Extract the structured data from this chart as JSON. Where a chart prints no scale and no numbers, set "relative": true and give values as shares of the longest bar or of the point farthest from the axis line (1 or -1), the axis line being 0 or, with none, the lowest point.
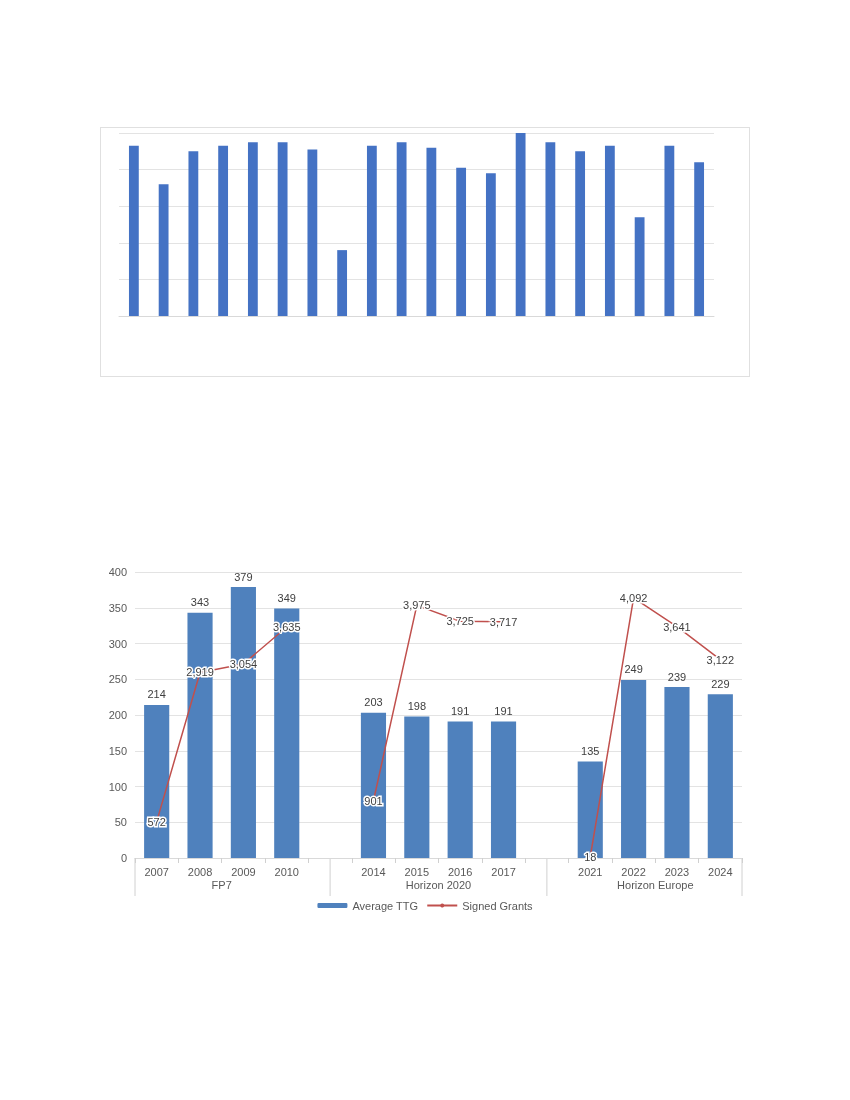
{
  "chart_data": [
    {
      "type": "bar",
      "relative": true,
      "grid": "y",
      "categories": [
        null,
        null,
        null,
        null,
        null,
        null,
        null,
        null,
        null,
        null,
        null,
        null,
        null,
        null,
        null,
        null,
        null,
        null,
        null,
        null
      ],
      "series": [
        {
          "color": "#4472c4",
          "values": [
            0.93,
            0.72,
            0.9,
            0.93,
            0.95,
            0.95,
            0.91,
            0.36,
            0.93,
            0.95,
            0.92,
            0.81,
            0.78,
            1,
            0.95,
            0.9,
            0.93,
            0.54,
            0.93,
            0.84
          ]
        }
      ]
    },
    {
      "type": "bar",
      "grid": "y",
      "legend": "bottom",
      "data_labels": true,
      "ylim": [
        0,
        400
      ],
      "yticks": [
        0,
        50,
        100,
        150,
        200,
        250,
        300,
        350,
        400
      ],
      "y2lim": [
        0,
        4500
      ],
      "categories": [
        "2007",
        "2008",
        "2009",
        "2010",
        null,
        "2014",
        "2015",
        "2016",
        "2017",
        null,
        "2021",
        "2022",
        "2023",
        "2024"
      ],
      "annotations": [
        "FP7",
        "Horizon 2020",
        "Horizon Europe"
      ],
      "series": [
        {
          "name": "Average TTG",
          "type": "bar",
          "color": "#4f81bd",
          "values": [
            214,
            343,
            379,
            349,
            null,
            203,
            198,
            191,
            191,
            null,
            135,
            249,
            239,
            229
          ]
        },
        {
          "name": "Signed Grants",
          "type": "line",
          "axis": "y2",
          "color": "#c0504d",
          "values": [
            572,
            2919,
            3054,
            3635,
            null,
            901,
            3975,
            3725,
            3717,
            null,
            18,
            4092,
            3641,
            3122
          ],
          "value_labels": [
            "572",
            "2,919",
            "3,054",
            "3,635",
            null,
            "901",
            "3,975",
            "3,725",
            "3,717",
            null,
            "18",
            "4,092",
            "3,641",
            "3,122"
          ]
        }
      ]
    }
  ]
}
